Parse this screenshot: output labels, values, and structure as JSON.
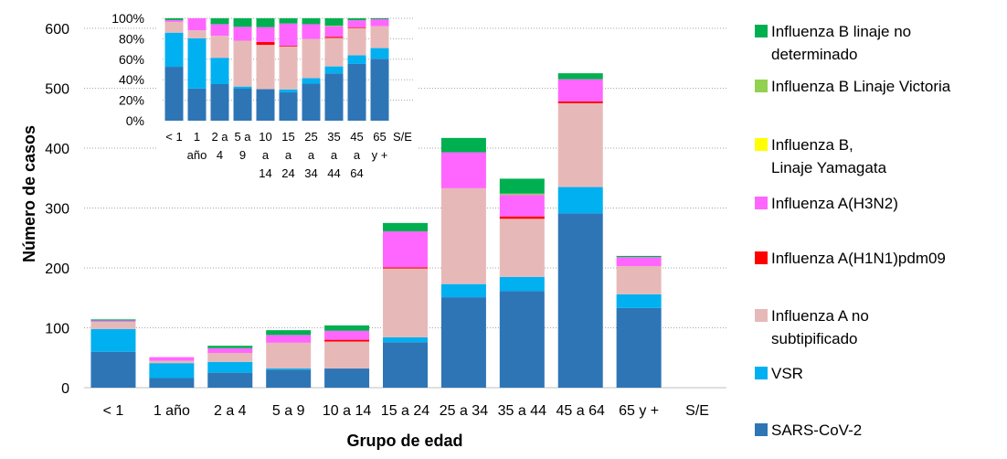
{
  "chart_data": [
    {
      "type": "bar",
      "stacked": true,
      "title": "",
      "xlabel": "Grupo de edad",
      "ylabel": "Número de casos",
      "ylim": [
        0,
        600
      ],
      "yticks": [
        0,
        100,
        200,
        300,
        400,
        500,
        600
      ],
      "grid": true,
      "legend_position": "right",
      "categories": [
        "< 1",
        "1 año",
        "2 a 4",
        "5 a 9",
        "10 a 14",
        "15 a 24",
        "25 a 34",
        "35 a 44",
        "45 a 64",
        "65 y +",
        "S/E"
      ],
      "series": [
        {
          "name": "SARS-CoV-2",
          "color": "#2E75B6",
          "values": [
            60,
            16,
            25,
            30,
            32,
            76,
            151,
            161,
            291,
            133,
            0
          ]
        },
        {
          "name": "VSR",
          "color": "#00B0F0",
          "values": [
            38,
            25,
            18,
            2,
            0,
            8,
            22,
            24,
            44,
            23,
            0
          ]
        },
        {
          "name": "Influenza A no\nsubtipificado",
          "color": "#E6B9B8",
          "values": [
            12,
            4,
            15,
            43,
            45,
            115,
            160,
            97,
            140,
            47,
            0
          ]
        },
        {
          "name": "Influenza A(H1N1)pdm09",
          "color": "#FF0000",
          "values": [
            0,
            0,
            0,
            0,
            3,
            2,
            0,
            4,
            3,
            0,
            0
          ]
        },
        {
          "name": "Influenza A(H3N2)",
          "color": "#FF66FF",
          "values": [
            2,
            6,
            8,
            13,
            15,
            60,
            60,
            36,
            37,
            15,
            0
          ]
        },
        {
          "name": "Influenza B,\n Linaje Yamagata",
          "color": "#FFFF00",
          "values": [
            0,
            0,
            0,
            0,
            0,
            0,
            0,
            0,
            0,
            0,
            0
          ]
        },
        {
          "name": "Influenza B Linaje Victoria",
          "color": "#92D050",
          "values": [
            0,
            0,
            0,
            0,
            0,
            0,
            0,
            2,
            0,
            0,
            0
          ]
        },
        {
          "name": "Influenza B linaje no\ndeterminado",
          "color": "#00B050",
          "values": [
            2,
            0,
            4,
            8,
            9,
            14,
            24,
            25,
            10,
            2,
            0
          ]
        }
      ]
    },
    {
      "type": "bar",
      "stacked": true,
      "percent": true,
      "title": "",
      "ylim": [
        0,
        1
      ],
      "yticks": [
        "0%",
        "20%",
        "40%",
        "60%",
        "80%",
        "100%"
      ],
      "grid": true,
      "categories": [
        [
          "< 1"
        ],
        [
          "1",
          "año"
        ],
        [
          "2 a",
          "4"
        ],
        [
          "5 a",
          "9"
        ],
        [
          "10",
          "a",
          "14"
        ],
        [
          "15",
          "a",
          "24"
        ],
        [
          "25",
          "a",
          "34"
        ],
        [
          "35",
          "a",
          "44"
        ],
        [
          "45",
          "a",
          "64"
        ],
        [
          "65",
          "y +"
        ],
        [
          "S/E"
        ]
      ],
      "series_ref": "same series and values as the main chart, normalized to 100% per category"
    }
  ],
  "legend": {
    "items": [
      {
        "label": "Influenza B linaje no\ndeterminado",
        "color": "#00B050"
      },
      {
        "label": "Influenza B Linaje Victoria",
        "color": "#92D050"
      },
      {
        "label": "Influenza B,\n Linaje Yamagata",
        "color": "#FFFF00"
      },
      {
        "label": "Influenza A(H3N2)",
        "color": "#FF66FF"
      },
      {
        "label": "Influenza A(H1N1)pdm09",
        "color": "#FF0000"
      },
      {
        "label": "Influenza A no\nsubtipificado",
        "color": "#E6B9B8"
      },
      {
        "label": "VSR",
        "color": "#00B0F0"
      },
      {
        "label": "SARS-CoV-2",
        "color": "#2E75B6"
      }
    ]
  }
}
